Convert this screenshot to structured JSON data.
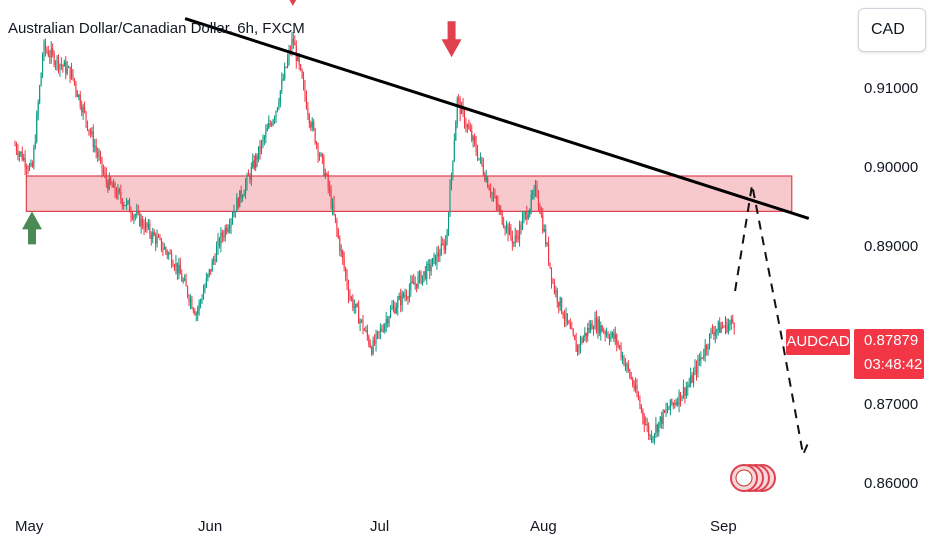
{
  "chart_data": {
    "type": "candlestick",
    "title": "Australian Dollar/Canadian Dollar, 6h, FXCM",
    "currency_button": "CAD",
    "symbol": "AUDCAD",
    "last_price": "0.87879",
    "countdown": "03:48:42",
    "y_ticks": [
      "0.91000",
      "0.90000",
      "0.89000",
      "0.87000",
      "0.86000"
    ],
    "x_ticks": [
      "May",
      "Jun",
      "Jul",
      "Aug",
      "Sep"
    ],
    "ylim": [
      0.8583,
      0.9154
    ],
    "approx_price_path": [
      {
        "date": "Apr 28",
        "close": 0.899
      },
      {
        "date": "May 1",
        "close": 0.896
      },
      {
        "date": "May 3",
        "close": 0.91
      },
      {
        "date": "May 8",
        "close": 0.907
      },
      {
        "date": "May 14",
        "close": 0.895
      },
      {
        "date": "May 18",
        "close": 0.892
      },
      {
        "date": "May 22",
        "close": 0.889
      },
      {
        "date": "May 26",
        "close": 0.886
      },
      {
        "date": "May 30",
        "close": 0.88
      },
      {
        "date": "Jun 3",
        "close": 0.888
      },
      {
        "date": "Jun 8",
        "close": 0.895
      },
      {
        "date": "Jun 13",
        "close": 0.903
      },
      {
        "date": "Jun 16",
        "close": 0.911
      },
      {
        "date": "Jun 19",
        "close": 0.902
      },
      {
        "date": "Jun 22",
        "close": 0.895
      },
      {
        "date": "Jun 26",
        "close": 0.882
      },
      {
        "date": "Jun 30",
        "close": 0.876
      },
      {
        "date": "Jul 3",
        "close": 0.88
      },
      {
        "date": "Jul 7",
        "close": 0.883
      },
      {
        "date": "Jul 10",
        "close": 0.885
      },
      {
        "date": "Jul 13",
        "close": 0.888
      },
      {
        "date": "Jul 15",
        "close": 0.904
      },
      {
        "date": "Jul 18",
        "close": 0.899
      },
      {
        "date": "Jul 22",
        "close": 0.892
      },
      {
        "date": "Jul 25",
        "close": 0.888
      },
      {
        "date": "Jul 29",
        "close": 0.894
      },
      {
        "date": "Aug 1",
        "close": 0.883
      },
      {
        "date": "Aug 5",
        "close": 0.876
      },
      {
        "date": "Aug 8",
        "close": 0.879
      },
      {
        "date": "Aug 12",
        "close": 0.877
      },
      {
        "date": "Aug 15",
        "close": 0.872
      },
      {
        "date": "Aug 18",
        "close": 0.866
      },
      {
        "date": "Aug 21",
        "close": 0.869
      },
      {
        "date": "Aug 25",
        "close": 0.872
      },
      {
        "date": "Aug 29",
        "close": 0.878
      },
      {
        "date": "Sep 2",
        "close": 0.879
      }
    ],
    "resistance_zone": {
      "low": 0.8915,
      "high": 0.8955,
      "from": "Apr 30",
      "to": "Sep 12"
    },
    "trendline": [
      {
        "date": "May 28",
        "price": 0.9133
      },
      {
        "date": "Sep 15",
        "price": 0.8907
      }
    ],
    "forecast_path": [
      {
        "date": "Sep 2",
        "price": 0.8825
      },
      {
        "date": "Sep 5",
        "price": 0.8945
      },
      {
        "date": "Sep 10",
        "price": 0.878
      },
      {
        "date": "Sep 14",
        "price": 0.864
      },
      {
        "date": "Sep 15",
        "price": 0.8655
      }
    ],
    "markers": [
      {
        "kind": "arrow-down",
        "color": "#e0414f",
        "date": "Jun 16",
        "price": 0.9145
      },
      {
        "kind": "arrow-down",
        "color": "#e0414f",
        "date": "Jul 14",
        "price": 0.9087
      },
      {
        "kind": "arrow-up",
        "color": "#4b8a55",
        "date": "May 1",
        "price": 0.8915
      }
    ],
    "colors": {
      "up": "#089981",
      "down": "#f23645",
      "zone_fill": "#f7c5c9",
      "zone_stroke": "#e0414f",
      "line": "#000000"
    }
  }
}
